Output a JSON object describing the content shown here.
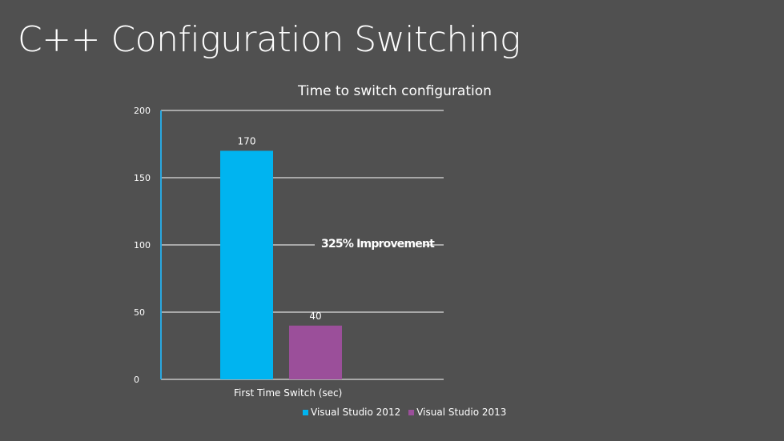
{
  "slide": {
    "title": "C++ Configuration Switching"
  },
  "colors": {
    "background": "#505050",
    "axis": "#29a8e0",
    "grid": "#ffffff",
    "series_2012": "#00b4f0",
    "series_2013": "#9b4f9a"
  },
  "chart_data": {
    "type": "bar",
    "title": "Time to switch configuration",
    "categories": [
      "First Time Switch (sec)"
    ],
    "series": [
      {
        "name": "Visual Studio 2012",
        "values": [
          170
        ],
        "color": "#00b4f0"
      },
      {
        "name": "Visual Studio 2013",
        "values": [
          40
        ],
        "color": "#9b4f9a"
      }
    ],
    "ylim": [
      0,
      200
    ],
    "yticks": [
      "0",
      "50",
      "100",
      "150",
      "200"
    ],
    "grid": true,
    "legend_position": "bottom",
    "annotation": "325% Improvement"
  }
}
